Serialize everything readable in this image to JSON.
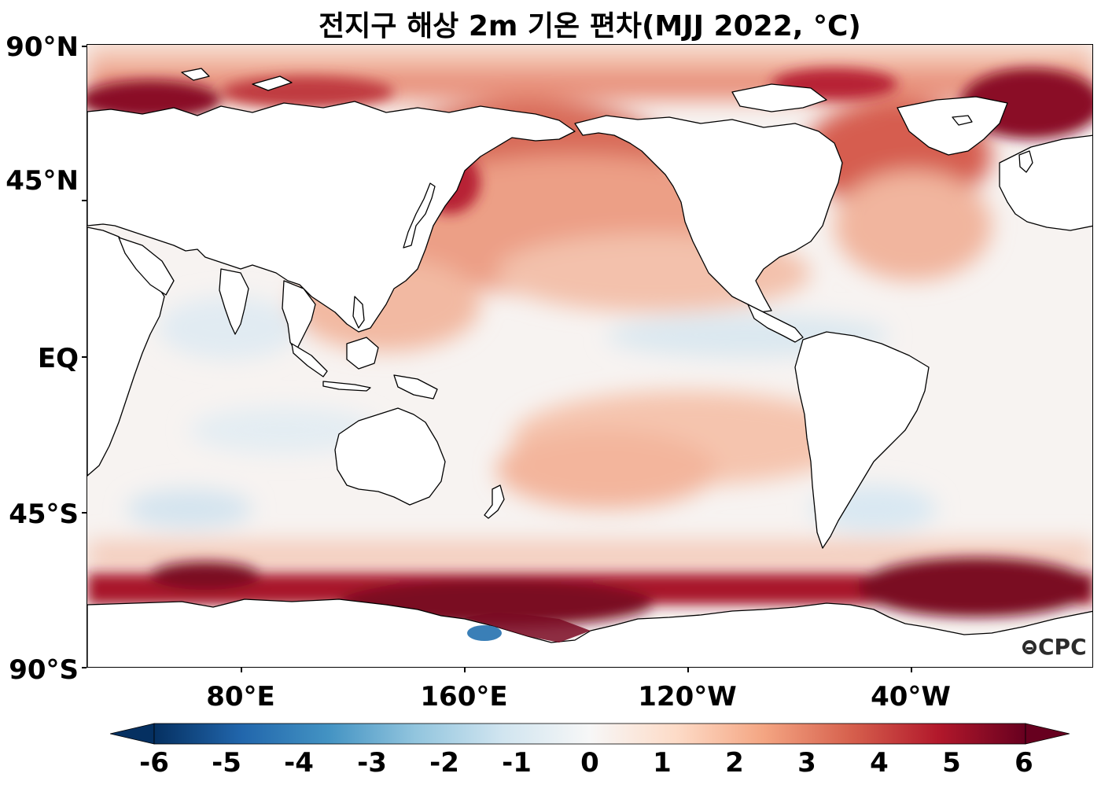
{
  "title": "전지구 해상 2m 기온 편차(MJJ 2022, °C)",
  "map": {
    "variable": "2m air temperature anomaly over ocean",
    "lat_labels": [
      "90°N",
      "45°N",
      "EQ",
      "45°S",
      "90°S"
    ],
    "lon_labels": [
      "80°E",
      "160°E",
      "120°W",
      "40°W"
    ],
    "land_color": "#ffffff",
    "coastline_color": "#000000"
  },
  "colorbar": {
    "ticks": [
      "-6",
      "-5",
      "-4",
      "-3",
      "-2",
      "-1",
      "0",
      "1",
      "2",
      "3",
      "4",
      "5",
      "6"
    ],
    "colors": [
      "#053061",
      "#2166ac",
      "#4393c3",
      "#92c5de",
      "#d1e5f0",
      "#f7f7f7",
      "#fddbc7",
      "#f4a582",
      "#d6604d",
      "#b2182b",
      "#67001f"
    ],
    "extend": "both"
  },
  "logo": "CPC"
}
